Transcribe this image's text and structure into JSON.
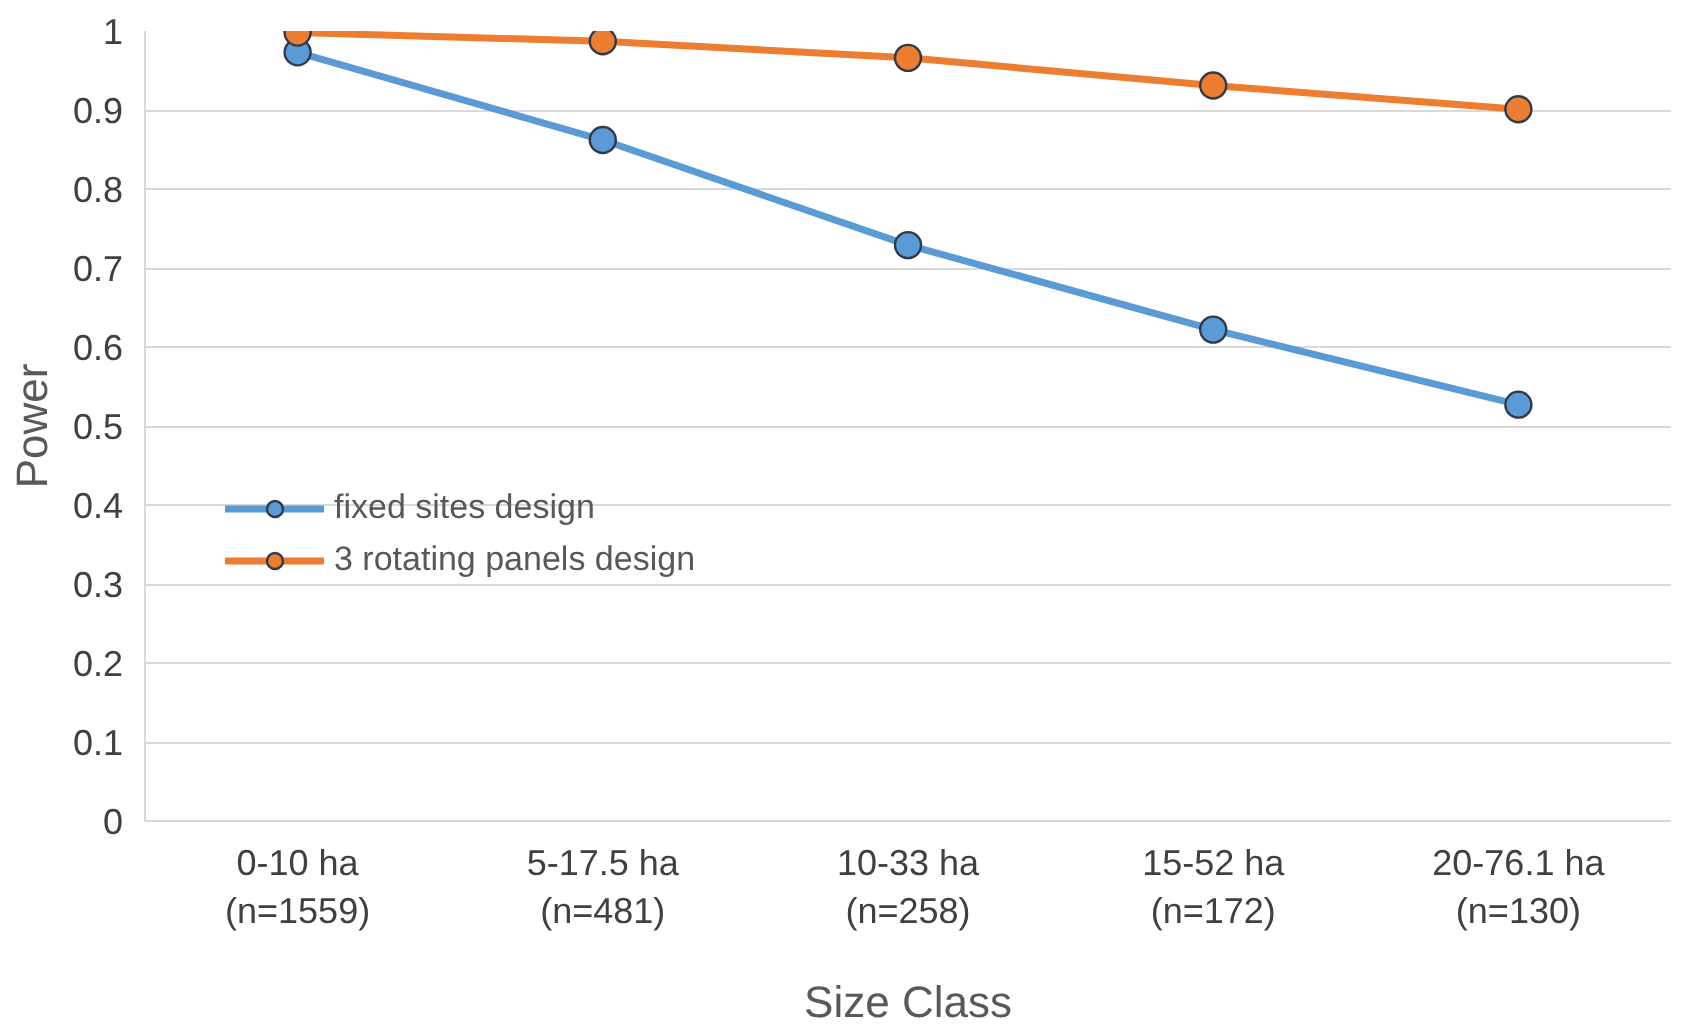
{
  "chart_data": {
    "type": "line",
    "xlabel": "Size Class",
    "ylabel": "Power",
    "categories": [
      "0-10 ha\n(n=1559)",
      "5-17.5 ha\n(n=481)",
      "10-33 ha\n(n=258)",
      "15-52 ha\n(n=172)",
      "20-76.1 ha\n(n=130)"
    ],
    "series": [
      {
        "name": "fixed sites design",
        "color": "#5b9bd5",
        "values": [
          0.973,
          0.862,
          0.729,
          0.622,
          0.527
        ]
      },
      {
        "name": "3 rotating panels design",
        "color": "#ed7d31",
        "values": [
          0.998,
          0.987,
          0.966,
          0.931,
          0.901
        ]
      }
    ],
    "ylim": [
      0,
      1
    ],
    "yticks": [
      0,
      0.1,
      0.2,
      0.3,
      0.4,
      0.5,
      0.6,
      0.7,
      0.8,
      0.9,
      1
    ],
    "grid": "y",
    "legend": "left",
    "marker": "circle",
    "line_style": "solid"
  }
}
